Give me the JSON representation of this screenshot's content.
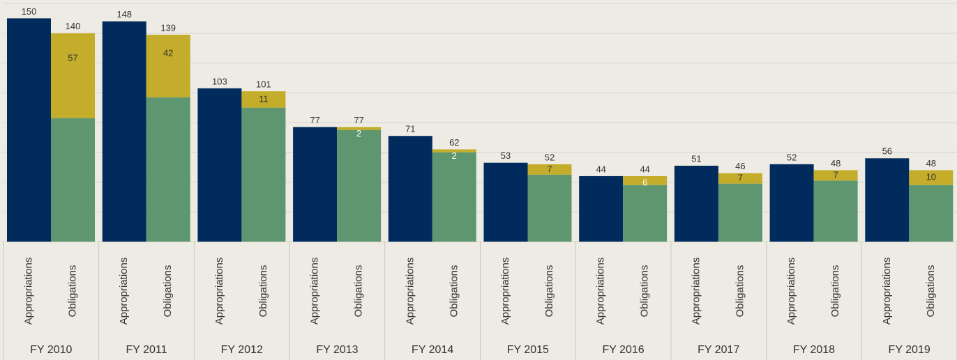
{
  "chart_data": {
    "type": "grouped-stacked-bar",
    "categories": [
      "FY 2010",
      "FY 2011",
      "FY 2012",
      "FY 2013",
      "FY 2014",
      "FY 2015",
      "FY 2016",
      "FY 2017",
      "FY 2018",
      "FY 2019"
    ],
    "bar_labels": [
      "Appropriations",
      "Obligations"
    ],
    "appropriations": {
      "color": "#002b5c",
      "values": [
        150,
        148,
        103,
        77,
        71,
        53,
        44,
        51,
        52,
        56
      ]
    },
    "obligations": {
      "totals": [
        140,
        139,
        101,
        77,
        62,
        52,
        44,
        46,
        48,
        48
      ],
      "segments": [
        {
          "color": "#5e9670",
          "values": [
            83,
            97,
            90,
            75,
            60,
            45,
            38,
            39,
            41,
            38
          ]
        },
        {
          "color": "#c4ad2a",
          "values": [
            57,
            42,
            11,
            2,
            2,
            7,
            6,
            7,
            7,
            10
          ]
        }
      ]
    },
    "ylim": [
      0,
      160
    ],
    "yticks": [
      0,
      20,
      40,
      60,
      80,
      100,
      120,
      140,
      160
    ],
    "grid": true
  }
}
